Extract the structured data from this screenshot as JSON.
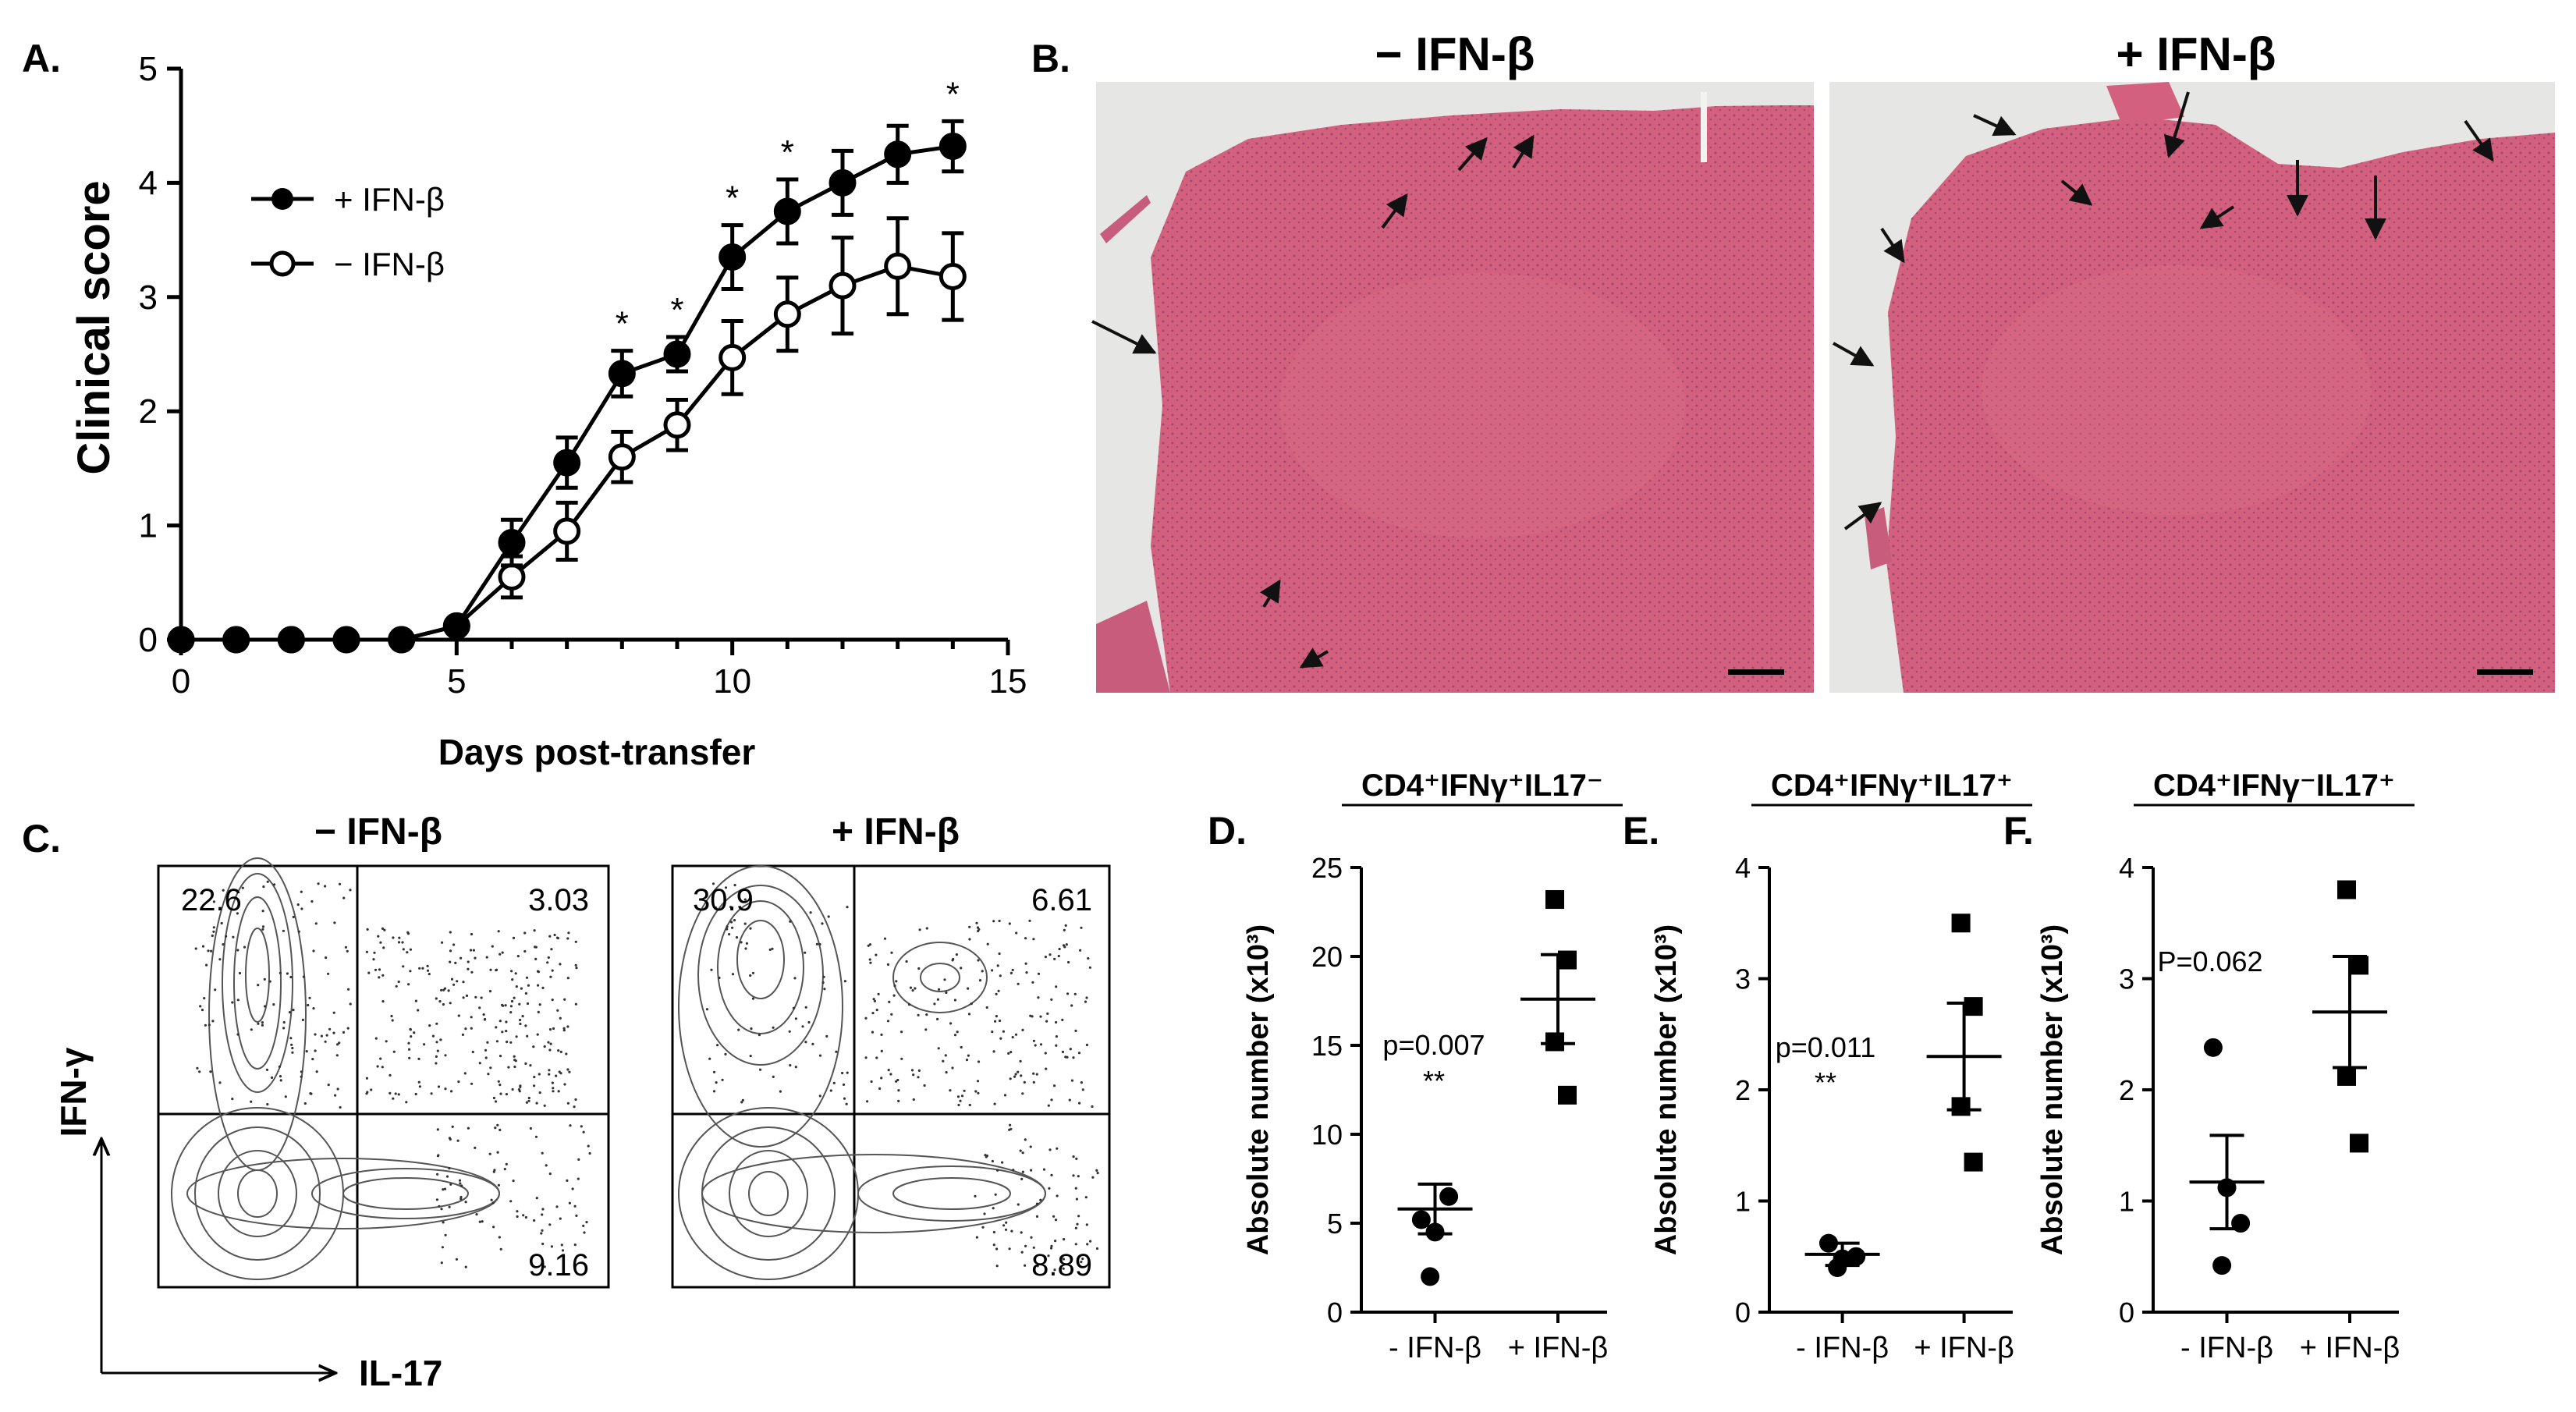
{
  "panel_labels": {
    "a": "A.",
    "b": "B.",
    "c": "C.",
    "d": "D.",
    "e": "E.",
    "f": "F."
  },
  "colors": {
    "histology_fill": "#d2607e",
    "histology_bg": "#e6e6e4",
    "line": "#000000",
    "arrow": "#111111"
  },
  "chart_data": [
    {
      "type": "line",
      "ylabel": "Clinical score",
      "xlabel": "Days post-transfer",
      "xlim": [
        0,
        15
      ],
      "ylim": [
        0,
        5
      ],
      "x_ticks": [
        "0",
        "5",
        "10",
        "15"
      ],
      "y_ticks": [
        "0",
        "1",
        "2",
        "3",
        "4",
        "5"
      ],
      "legend_placement": "top-left",
      "significance_mark": "*",
      "significant_days": [
        8,
        9,
        10,
        11,
        14
      ],
      "series": [
        {
          "name": "+ IFN-β",
          "marker": "filled-circle",
          "x": [
            0,
            1,
            2,
            3,
            4,
            5,
            6,
            7,
            8,
            9,
            10,
            11,
            12,
            13,
            14
          ],
          "values": [
            0,
            0,
            0,
            0,
            0,
            0.12,
            0.85,
            1.55,
            2.33,
            2.5,
            3.35,
            3.75,
            4.0,
            4.25,
            4.32
          ],
          "errors": [
            0,
            0,
            0,
            0,
            0,
            0.05,
            0.2,
            0.22,
            0.2,
            0.15,
            0.28,
            0.28,
            0.28,
            0.25,
            0.22
          ]
        },
        {
          "name": "− IFN-β",
          "marker": "open-circle",
          "x": [
            0,
            1,
            2,
            3,
            4,
            5,
            6,
            7,
            8,
            9,
            10,
            11,
            12,
            13,
            14
          ],
          "values": [
            0,
            0,
            0,
            0,
            0,
            0.12,
            0.55,
            0.95,
            1.6,
            1.88,
            2.47,
            2.85,
            3.1,
            3.27,
            3.18
          ],
          "errors": [
            0,
            0,
            0,
            0,
            0,
            0.05,
            0.18,
            0.25,
            0.22,
            0.22,
            0.32,
            0.32,
            0.42,
            0.42,
            0.38
          ]
        }
      ]
    },
    {
      "type": "scatter",
      "title": "CD4⁺IFNγ⁺IL17⁻",
      "ylabel": "Absolute number (x10³)",
      "ylim": [
        0,
        25
      ],
      "y_ticks": [
        "0",
        "5",
        "10",
        "15",
        "20",
        "25"
      ],
      "categories": [
        "- IFN-β",
        "+ IFN-β"
      ],
      "points": [
        [
          5.2,
          4.5,
          6.5,
          2.0
        ],
        [
          23.2,
          19.8,
          15.2,
          12.2
        ]
      ],
      "means": [
        5.8,
        17.6
      ],
      "sems": [
        1.4,
        2.5
      ],
      "annotation_text": "p=0.007",
      "annotation_stars": "**"
    },
    {
      "type": "scatter",
      "title": "CD4⁺IFNγ⁺IL17⁺",
      "ylabel": "Absolute number (x10³)",
      "ylim": [
        0,
        4
      ],
      "y_ticks": [
        "0",
        "1",
        "2",
        "3",
        "4"
      ],
      "categories": [
        "- IFN-β",
        "+ IFN-β"
      ],
      "points": [
        [
          0.62,
          0.48,
          0.5,
          0.4
        ],
        [
          3.5,
          2.75,
          1.85,
          1.35
        ]
      ],
      "means": [
        0.52,
        2.3
      ],
      "sems": [
        0.1,
        0.48
      ],
      "annotation_text": "p=0.011",
      "annotation_stars": "**"
    },
    {
      "type": "scatter",
      "title": "CD4⁺IFNγ⁻IL17⁺",
      "ylabel": "Absolute number (x10³)",
      "ylim": [
        0,
        4
      ],
      "y_ticks": [
        "0",
        "1",
        "2",
        "3",
        "4"
      ],
      "categories": [
        "- IFN-β",
        "+ IFN-β"
      ],
      "points": [
        [
          2.38,
          1.12,
          0.8,
          0.42
        ],
        [
          3.8,
          3.12,
          2.12,
          1.52
        ]
      ],
      "means": [
        1.17,
        2.7
      ],
      "sems": [
        0.42,
        0.5
      ],
      "annotation_text": "P=0.062",
      "annotation_stars": ""
    }
  ],
  "histology": {
    "left_title": "− IFN-β",
    "right_title": "+ IFN-β"
  },
  "flow": {
    "left_title": "− IFN-β",
    "right_title": "+ IFN-β",
    "y_axis_label": "IFN-γ",
    "x_axis_label": "IL-17",
    "left_quadrants": {
      "top_left": "22.6",
      "top_right": "3.03",
      "bottom_right": "9.16"
    },
    "right_quadrants": {
      "top_left": "30.9",
      "top_right": "6.61",
      "bottom_right": "8.89"
    }
  }
}
